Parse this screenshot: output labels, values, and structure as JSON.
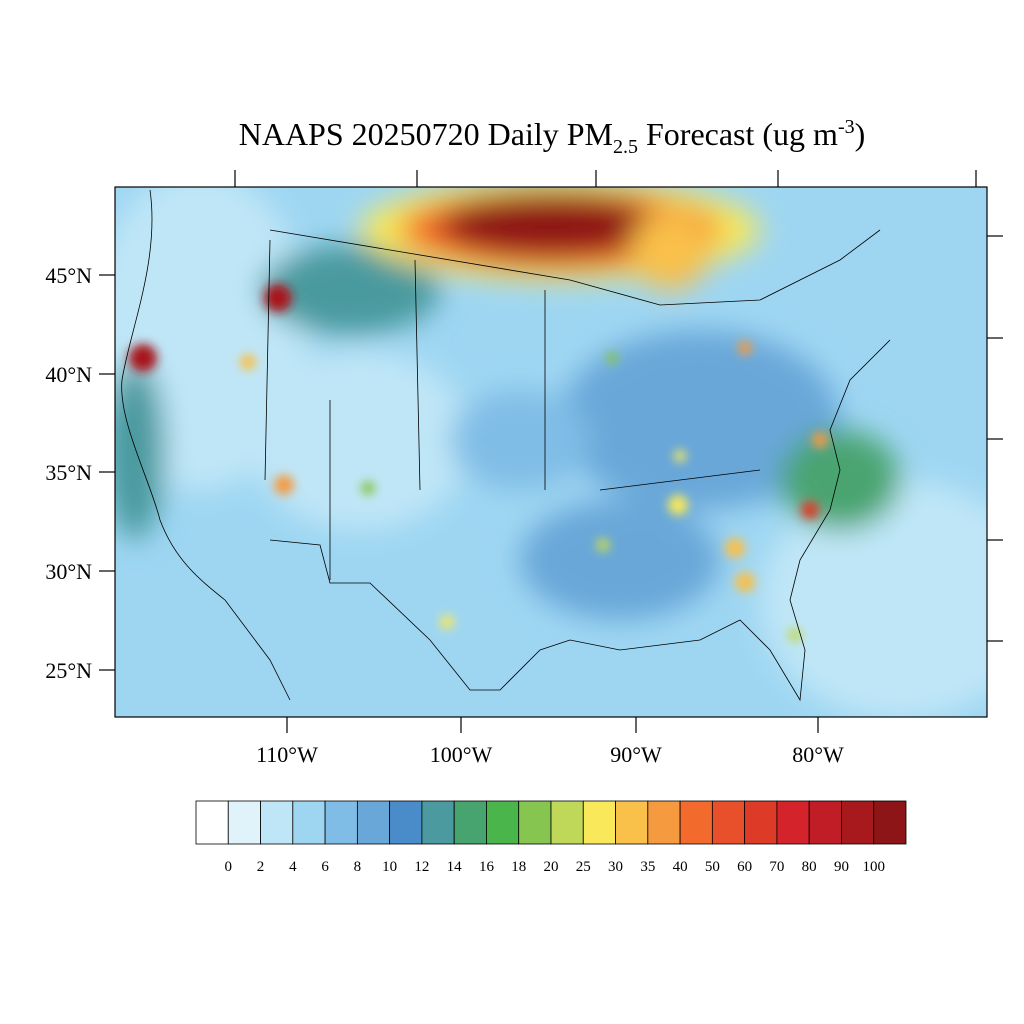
{
  "title": {
    "main": "NAAPS 20250720 Daily PM",
    "sub": "2.5",
    "middle": " Forecast (ug m",
    "sup": "-3",
    "end": ")"
  },
  "map": {
    "lat_labels": [
      "45°N",
      "40°N",
      "35°N",
      "30°N",
      "25°N"
    ],
    "lon_labels": [
      "110°W",
      "100°W",
      "90°W",
      "80°W"
    ]
  },
  "colorbar": {
    "levels": [
      0,
      2,
      4,
      6,
      8,
      10,
      12,
      14,
      16,
      18,
      20,
      25,
      30,
      35,
      40,
      50,
      60,
      70,
      80,
      90,
      100
    ],
    "colors": [
      "#ffffff",
      "#e0f3fb",
      "#bfe6f7",
      "#9ed6f2",
      "#80bde6",
      "#69a7d9",
      "#4a8cc9",
      "#4a9a9f",
      "#48a46f",
      "#4ab54a",
      "#86c550",
      "#c0d85a",
      "#f8e85a",
      "#f9c04a",
      "#f59a3f",
      "#f26a2c",
      "#e8502c",
      "#dd3a28",
      "#d4232b",
      "#c11d26",
      "#a8191e",
      "#8e1517"
    ]
  }
}
